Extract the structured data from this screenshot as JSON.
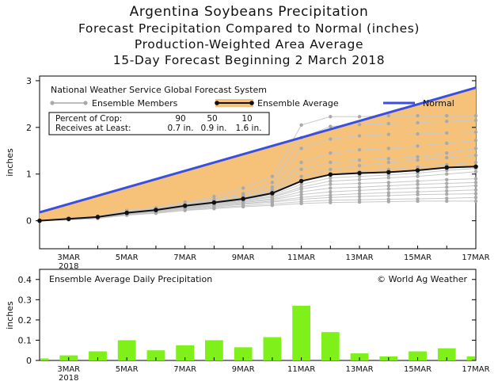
{
  "title": "Argentina Soybeans Precipitation",
  "subtitle_1": "Forecast Precipitation Compared to Normal (inches)",
  "subtitle_2": "Production-Weighted Area Average",
  "subtitle_3": "15-Day Forecast Beginning 2 March 2018",
  "colors": {
    "normal": "#3a4fe0",
    "fill": "#f6c27a",
    "average": "#111111",
    "members": "#a9a9a9",
    "bars": "#7ff01a"
  },
  "chart_data": [
    {
      "type": "line",
      "title": "National Weather Service Global Forecast System",
      "ylabel": "inches",
      "ylim": [
        -0.6,
        3.1
      ],
      "yticks": [
        "0",
        "1",
        "2",
        "3"
      ],
      "xticks": [
        "3MAR",
        "5MAR",
        "7MAR",
        "9MAR",
        "11MAR",
        "13MAR",
        "15MAR",
        "17MAR"
      ],
      "xtick_subtitle": "2018",
      "legend": {
        "members": "Ensemble Members",
        "average": "Ensemble Average",
        "normal": "Normal"
      },
      "table": {
        "row1_label": "Percent of Crop:",
        "row1_values": [
          "90",
          "50",
          "10"
        ],
        "row2_label": "Receives at Least:",
        "row2_values": [
          "0.7 in.",
          "0.9 in.",
          "1.6 in."
        ]
      },
      "x_days": [
        2,
        3,
        4,
        5,
        6,
        7,
        8,
        9,
        10,
        11,
        12,
        13,
        14,
        15,
        16,
        17
      ],
      "normal": {
        "x": [
          2,
          17
        ],
        "y": [
          0.18,
          2.85
        ]
      },
      "series": [
        {
          "values": [
            0.0,
            0.04,
            0.08,
            0.17,
            0.23,
            0.32,
            0.39,
            0.47,
            0.59,
            0.85,
            0.99,
            1.02,
            1.04,
            1.08,
            1.14,
            1.16
          ]
        }
      ],
      "members": [
        [
          0.0,
          0.05,
          0.1,
          0.22,
          0.28,
          0.4,
          0.52,
          0.7,
          0.95,
          2.05,
          2.23,
          2.23,
          2.25,
          2.25,
          2.25,
          2.25
        ],
        [
          0.0,
          0.05,
          0.09,
          0.2,
          0.26,
          0.36,
          0.46,
          0.58,
          0.82,
          1.78,
          2.02,
          2.06,
          2.08,
          2.1,
          2.13,
          2.15
        ],
        [
          0.0,
          0.04,
          0.09,
          0.19,
          0.25,
          0.35,
          0.44,
          0.54,
          0.72,
          1.55,
          1.75,
          1.82,
          1.85,
          1.86,
          1.88,
          1.9
        ],
        [
          0.0,
          0.04,
          0.08,
          0.18,
          0.24,
          0.34,
          0.42,
          0.5,
          0.66,
          1.25,
          1.45,
          1.52,
          1.55,
          1.6,
          1.66,
          1.72
        ],
        [
          0.0,
          0.04,
          0.08,
          0.18,
          0.24,
          0.33,
          0.41,
          0.49,
          0.62,
          1.1,
          1.25,
          1.3,
          1.33,
          1.37,
          1.45,
          1.55
        ],
        [
          0.0,
          0.04,
          0.08,
          0.17,
          0.23,
          0.32,
          0.4,
          0.48,
          0.6,
          0.95,
          1.1,
          1.18,
          1.25,
          1.3,
          1.35,
          1.4
        ],
        [
          0.0,
          0.04,
          0.08,
          0.17,
          0.23,
          0.32,
          0.39,
          0.47,
          0.58,
          0.85,
          1.0,
          1.05,
          1.1,
          1.15,
          1.2,
          1.25
        ],
        [
          0.0,
          0.04,
          0.07,
          0.16,
          0.22,
          0.31,
          0.38,
          0.46,
          0.55,
          0.78,
          0.92,
          0.95,
          0.98,
          1.02,
          1.08,
          1.12
        ],
        [
          0.0,
          0.03,
          0.07,
          0.16,
          0.22,
          0.3,
          0.37,
          0.44,
          0.52,
          0.72,
          0.85,
          0.88,
          0.92,
          0.95,
          1.0,
          1.05
        ],
        [
          0.0,
          0.03,
          0.07,
          0.15,
          0.21,
          0.29,
          0.36,
          0.43,
          0.5,
          0.68,
          0.78,
          0.8,
          0.82,
          0.85,
          0.88,
          0.9
        ],
        [
          0.0,
          0.03,
          0.06,
          0.15,
          0.2,
          0.28,
          0.35,
          0.41,
          0.47,
          0.62,
          0.7,
          0.72,
          0.75,
          0.78,
          0.8,
          0.82
        ],
        [
          0.0,
          0.03,
          0.06,
          0.14,
          0.2,
          0.27,
          0.33,
          0.39,
          0.45,
          0.56,
          0.62,
          0.65,
          0.68,
          0.7,
          0.72,
          0.75
        ],
        [
          0.0,
          0.03,
          0.06,
          0.14,
          0.19,
          0.26,
          0.32,
          0.37,
          0.42,
          0.5,
          0.55,
          0.58,
          0.6,
          0.62,
          0.64,
          0.66
        ],
        [
          0.0,
          0.03,
          0.05,
          0.13,
          0.18,
          0.25,
          0.3,
          0.35,
          0.4,
          0.46,
          0.5,
          0.52,
          0.54,
          0.56,
          0.57,
          0.58
        ],
        [
          0.0,
          0.02,
          0.05,
          0.12,
          0.17,
          0.23,
          0.28,
          0.32,
          0.36,
          0.41,
          0.44,
          0.45,
          0.46,
          0.47,
          0.48,
          0.5
        ],
        [
          0.0,
          0.02,
          0.05,
          0.12,
          0.16,
          0.22,
          0.26,
          0.3,
          0.33,
          0.37,
          0.39,
          0.4,
          0.41,
          0.42,
          0.42,
          0.42
        ]
      ]
    },
    {
      "type": "bar",
      "title": "Ensemble Average Daily Precipitation",
      "credit": "© World Ag Weather",
      "ylabel": "inches",
      "ylim": [
        0,
        0.45
      ],
      "yticks": [
        "0",
        "0.1",
        "0.2",
        "0.3",
        "0.4"
      ],
      "xticks": [
        "3MAR",
        "5MAR",
        "7MAR",
        "9MAR",
        "11MAR",
        "13MAR",
        "15MAR",
        "17MAR"
      ],
      "xtick_subtitle": "2018",
      "x_days": [
        2,
        3,
        4,
        5,
        6,
        7,
        8,
        9,
        10,
        11,
        12,
        13,
        14,
        15,
        16,
        17
      ],
      "values": [
        0.01,
        0.025,
        0.045,
        0.1,
        0.05,
        0.075,
        0.1,
        0.065,
        0.115,
        0.27,
        0.14,
        0.035,
        0.02,
        0.045,
        0.06,
        0.02
      ]
    }
  ]
}
